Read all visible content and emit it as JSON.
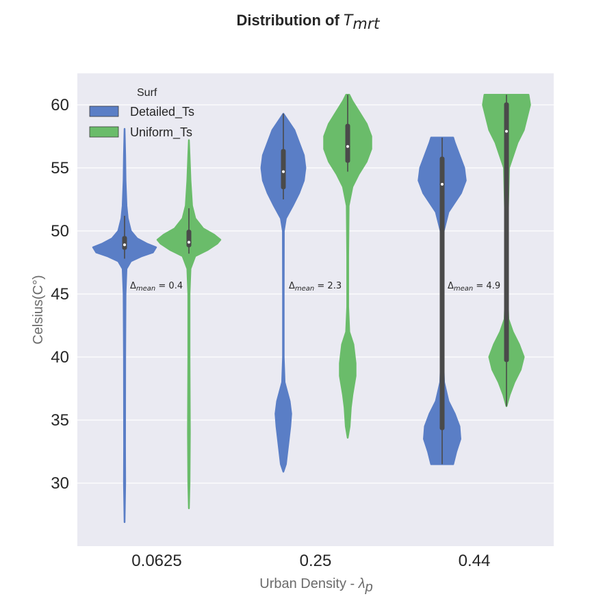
{
  "chart_data": {
    "type": "violin",
    "title": "Distribution of ",
    "title_symbol": "T",
    "title_subscript": "mrt",
    "xlabel": "Urban Density - ",
    "xlabel_symbol": "λ",
    "xlabel_subscript": "p",
    "ylabel": "Celsius(C°)",
    "categories": [
      "0.0625",
      "0.25",
      "0.44"
    ],
    "ylim": [
      25,
      62.5
    ],
    "yticks": [
      30,
      35,
      40,
      45,
      50,
      55,
      60
    ],
    "grid": true,
    "background": "#eaeaf2",
    "legend": {
      "title": "Surf",
      "position": "top-left",
      "entries": [
        {
          "label": "Detailed_Ts",
          "color": "#5a7ec6"
        },
        {
          "label": "Uniform_Ts",
          "color": "#6abc6a"
        }
      ]
    },
    "annotations": [
      {
        "category": "0.0625",
        "prefix": "Δ",
        "subscript": "mean",
        "text": " = 0.4",
        "y": 45.7
      },
      {
        "category": "0.25",
        "prefix": "Δ",
        "subscript": "mean",
        "text": " = 2.3",
        "y": 45.7
      },
      {
        "category": "0.44",
        "prefix": "Δ",
        "subscript": "mean",
        "text": " = 4.9",
        "y": 45.7
      }
    ],
    "series": [
      {
        "name": "Detailed_Ts",
        "color": "#5a7ec6",
        "violins": [
          {
            "category": "0.0625",
            "min": 26.9,
            "max": 58.1,
            "q1": 48.5,
            "median": 48.9,
            "q3": 49.6,
            "whisker_low": 47.8,
            "whisker_high": 51.2,
            "density": [
              [
                26.9,
                0.0
              ],
              [
                30,
                0.02
              ],
              [
                33,
                0.015
              ],
              [
                40,
                0.02
              ],
              [
                45,
                0.03
              ],
              [
                47,
                0.06
              ],
              [
                47.6,
                0.2
              ],
              [
                48.0,
                0.55
              ],
              [
                48.3,
                0.9
              ],
              [
                48.7,
                1.0
              ],
              [
                49.0,
                0.7
              ],
              [
                49.4,
                0.4
              ],
              [
                50,
                0.2
              ],
              [
                51,
                0.1
              ],
              [
                52,
                0.06
              ],
              [
                54,
                0.03
              ],
              [
                56,
                0.02
              ],
              [
                58.1,
                0.0
              ]
            ]
          },
          {
            "category": "0.25",
            "min": 30.9,
            "max": 59.3,
            "q1": 53.3,
            "median": 54.7,
            "q3": 56.5,
            "whisker_low": 52.5,
            "whisker_high": 59.3,
            "density": [
              [
                30.9,
                0.0
              ],
              [
                31.5,
                0.08
              ],
              [
                33,
                0.15
              ],
              [
                34.5,
                0.22
              ],
              [
                35.5,
                0.25
              ],
              [
                36.5,
                0.2
              ],
              [
                38,
                0.04
              ],
              [
                40,
                0.01
              ],
              [
                45,
                0.01
              ],
              [
                50,
                0.015
              ],
              [
                51,
                0.08
              ],
              [
                52,
                0.3
              ],
              [
                53,
                0.5
              ],
              [
                54,
                0.65
              ],
              [
                55,
                0.7
              ],
              [
                56,
                0.65
              ],
              [
                57,
                0.5
              ],
              [
                58,
                0.35
              ],
              [
                59,
                0.08
              ],
              [
                59.3,
                0.0
              ]
            ]
          },
          {
            "category": "0.44",
            "min": 31.5,
            "max": 57.4,
            "q1": 34.2,
            "median": 53.7,
            "q3": 55.9,
            "whisker_low": 31.5,
            "whisker_high": 57.4,
            "density": [
              [
                31.5,
                0.35
              ],
              [
                32.5,
                0.45
              ],
              [
                33.5,
                0.58
              ],
              [
                34.5,
                0.55
              ],
              [
                35.5,
                0.4
              ],
              [
                36.5,
                0.2
              ],
              [
                38,
                0.06
              ],
              [
                40,
                0.03
              ],
              [
                45,
                0.02
              ],
              [
                50,
                0.05
              ],
              [
                51.5,
                0.2
              ],
              [
                53,
                0.6
              ],
              [
                54,
                0.75
              ],
              [
                55,
                0.7
              ],
              [
                56,
                0.55
              ],
              [
                57,
                0.4
              ],
              [
                57.4,
                0.35
              ]
            ]
          }
        ]
      },
      {
        "name": "Uniform_Ts",
        "color": "#6abc6a",
        "violins": [
          {
            "category": "0.0625",
            "min": 28.0,
            "max": 57.2,
            "q1": 48.7,
            "median": 49.1,
            "q3": 50.1,
            "whisker_low": 48.2,
            "whisker_high": 51.8,
            "density": [
              [
                28.0,
                0.0
              ],
              [
                30,
                0.02
              ],
              [
                34,
                0.03
              ],
              [
                40,
                0.02
              ],
              [
                45,
                0.02
              ],
              [
                47,
                0.05
              ],
              [
                48,
                0.2
              ],
              [
                48.5,
                0.6
              ],
              [
                49,
                0.9
              ],
              [
                49.3,
                1.0
              ],
              [
                49.7,
                0.8
              ],
              [
                50.2,
                0.45
              ],
              [
                51,
                0.2
              ],
              [
                52,
                0.1
              ],
              [
                54,
                0.05
              ],
              [
                56,
                0.02
              ],
              [
                57.2,
                0.0
              ]
            ]
          },
          {
            "category": "0.25",
            "min": 33.6,
            "max": 60.8,
            "q1": 55.4,
            "median": 56.7,
            "q3": 58.5,
            "whisker_low": 54.7,
            "whisker_high": 60.8,
            "density": [
              [
                33.6,
                0.0
              ],
              [
                34.5,
                0.06
              ],
              [
                36,
                0.1
              ],
              [
                37,
                0.15
              ],
              [
                38.5,
                0.25
              ],
              [
                39.5,
                0.25
              ],
              [
                41,
                0.18
              ],
              [
                42,
                0.05
              ],
              [
                44,
                0.015
              ],
              [
                48,
                0.015
              ],
              [
                52,
                0.03
              ],
              [
                53.5,
                0.15
              ],
              [
                54.5,
                0.35
              ],
              [
                55.5,
                0.6
              ],
              [
                56.5,
                0.75
              ],
              [
                57.5,
                0.75
              ],
              [
                58.5,
                0.6
              ],
              [
                59.5,
                0.35
              ],
              [
                60.3,
                0.15
              ],
              [
                60.8,
                0.05
              ]
            ]
          },
          {
            "category": "0.44",
            "min": 36.1,
            "max": 60.8,
            "q1": 39.6,
            "median": 57.9,
            "q3": 60.2,
            "whisker_low": 36.1,
            "whisker_high": 60.8,
            "density": [
              [
                36.1,
                0.0
              ],
              [
                37,
                0.1
              ],
              [
                38,
                0.25
              ],
              [
                39,
                0.45
              ],
              [
                40,
                0.55
              ],
              [
                41,
                0.4
              ],
              [
                42,
                0.2
              ],
              [
                43,
                0.06
              ],
              [
                45,
                0.03
              ],
              [
                50,
                0.03
              ],
              [
                55,
                0.08
              ],
              [
                57,
                0.35
              ],
              [
                58,
                0.55
              ],
              [
                59,
                0.65
              ],
              [
                60,
                0.75
              ],
              [
                60.8,
                0.7
              ]
            ]
          }
        ]
      }
    ]
  }
}
